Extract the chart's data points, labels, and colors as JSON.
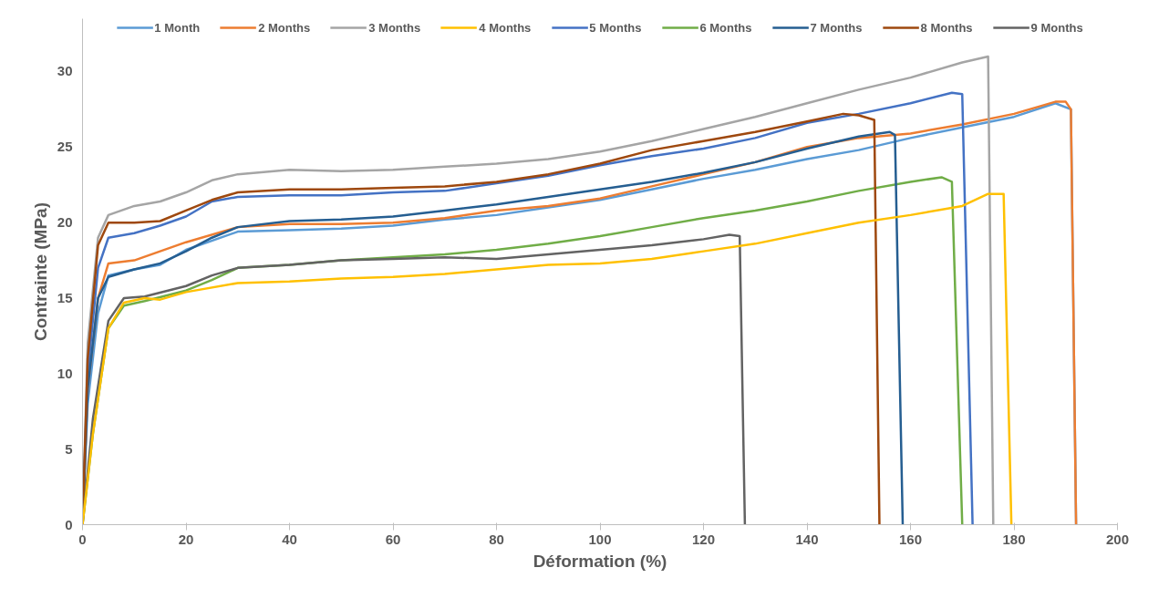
{
  "chart_data": {
    "type": "line",
    "xlabel": "Déformation (%)",
    "ylabel": "Contrainte (MPa)",
    "xlim": [
      0,
      200
    ],
    "ylim": [
      0,
      33.5
    ],
    "xticks": [
      0,
      20,
      40,
      60,
      80,
      100,
      120,
      140,
      160,
      180,
      200
    ],
    "yticks": [
      0,
      5,
      10,
      15,
      20,
      25,
      30
    ],
    "grid": false,
    "legend": "top center",
    "line_style": "solid",
    "marker": "none",
    "series": [
      {
        "name": "1 Month",
        "color": "#5b9bd5",
        "x": [
          0,
          1,
          3,
          5,
          10,
          15,
          20,
          30,
          40,
          50,
          60,
          70,
          80,
          90,
          100,
          110,
          120,
          130,
          140,
          150,
          160,
          170,
          180,
          188,
          191,
          192
        ],
        "values": [
          0,
          8,
          14,
          16.5,
          16.9,
          17.2,
          18.2,
          19.4,
          19.5,
          19.6,
          19.8,
          20.2,
          20.5,
          21,
          21.5,
          22.2,
          22.9,
          23.5,
          24.2,
          24.8,
          25.6,
          26.3,
          27,
          27.9,
          27.5,
          0
        ]
      },
      {
        "name": "2 Months",
        "color": "#ed7d31",
        "x": [
          0,
          1,
          3,
          5,
          10,
          20,
          30,
          40,
          50,
          60,
          70,
          80,
          90,
          100,
          110,
          120,
          130,
          140,
          150,
          160,
          170,
          180,
          188,
          190,
          191,
          192
        ],
        "values": [
          0,
          9,
          15,
          17.3,
          17.5,
          18.7,
          19.7,
          19.9,
          19.9,
          20,
          20.3,
          20.8,
          21.1,
          21.6,
          22.4,
          23.2,
          24,
          25,
          25.6,
          25.9,
          26.5,
          27.2,
          28,
          28,
          27.5,
          0
        ]
      },
      {
        "name": "3 Months",
        "color": "#a5a5a5",
        "x": [
          0,
          1,
          3,
          5,
          10,
          15,
          20,
          25,
          30,
          40,
          50,
          60,
          70,
          80,
          90,
          100,
          110,
          120,
          130,
          140,
          150,
          160,
          170,
          175,
          176
        ],
        "values": [
          0,
          12,
          19,
          20.5,
          21.1,
          21.4,
          22,
          22.8,
          23.2,
          23.5,
          23.4,
          23.5,
          23.7,
          23.9,
          24.2,
          24.7,
          25.4,
          26.2,
          27,
          27.9,
          28.8,
          29.6,
          30.6,
          31,
          0
        ]
      },
      {
        "name": "4 Months",
        "color": "#ffc000",
        "x": [
          0,
          2,
          5,
          8,
          12,
          15,
          20,
          30,
          40,
          50,
          60,
          70,
          80,
          90,
          100,
          110,
          120,
          130,
          140,
          150,
          160,
          170,
          175,
          178,
          179.5
        ],
        "values": [
          0,
          6,
          13,
          14.7,
          15,
          14.9,
          15.4,
          16,
          16.1,
          16.3,
          16.4,
          16.6,
          16.9,
          17.2,
          17.3,
          17.6,
          18.1,
          18.6,
          19.3,
          20,
          20.5,
          21.1,
          21.9,
          21.9,
          0
        ]
      },
      {
        "name": "5 Months",
        "color": "#4472c4",
        "x": [
          0,
          1,
          3,
          5,
          10,
          15,
          20,
          25,
          30,
          40,
          50,
          60,
          70,
          80,
          90,
          100,
          110,
          120,
          130,
          140,
          150,
          160,
          168,
          170,
          172
        ],
        "values": [
          0,
          10,
          17,
          19,
          19.3,
          19.8,
          20.4,
          21.4,
          21.7,
          21.8,
          21.8,
          22,
          22.1,
          22.6,
          23.1,
          23.8,
          24.4,
          24.9,
          25.6,
          26.6,
          27.2,
          27.9,
          28.6,
          28.5,
          0
        ]
      },
      {
        "name": "6 Months",
        "color": "#70ad47",
        "x": [
          0,
          2,
          5,
          8,
          12,
          20,
          25,
          30,
          40,
          50,
          60,
          70,
          80,
          90,
          100,
          110,
          120,
          130,
          140,
          150,
          160,
          166,
          168,
          170
        ],
        "values": [
          0,
          6,
          13,
          14.5,
          14.8,
          15.5,
          16.2,
          17,
          17.2,
          17.5,
          17.7,
          17.9,
          18.2,
          18.6,
          19.1,
          19.7,
          20.3,
          20.8,
          21.4,
          22.1,
          22.7,
          23,
          22.7,
          0
        ]
      },
      {
        "name": "7 Months",
        "color": "#255e91",
        "x": [
          0,
          1,
          3,
          5,
          10,
          15,
          20,
          25,
          30,
          40,
          50,
          60,
          70,
          80,
          90,
          100,
          110,
          120,
          130,
          140,
          150,
          156,
          157,
          158.5
        ],
        "values": [
          0,
          9,
          15,
          16.4,
          16.9,
          17.3,
          18.1,
          19,
          19.7,
          20.1,
          20.2,
          20.4,
          20.8,
          21.2,
          21.7,
          22.2,
          22.7,
          23.3,
          24,
          24.9,
          25.7,
          26,
          25.8,
          0
        ]
      },
      {
        "name": "8 Months",
        "color": "#9e480e",
        "x": [
          0,
          1,
          3,
          5,
          10,
          15,
          20,
          25,
          30,
          40,
          50,
          60,
          70,
          80,
          90,
          100,
          110,
          120,
          130,
          140,
          147,
          150,
          153,
          154
        ],
        "values": [
          0,
          11,
          18.5,
          20,
          20,
          20.1,
          20.8,
          21.5,
          22,
          22.2,
          22.2,
          22.3,
          22.4,
          22.7,
          23.2,
          23.9,
          24.8,
          25.4,
          26,
          26.7,
          27.2,
          27.1,
          26.8,
          0
        ]
      },
      {
        "name": "9 Months",
        "color": "#636363",
        "x": [
          0,
          2,
          5,
          8,
          12,
          20,
          25,
          30,
          40,
          50,
          60,
          70,
          80,
          90,
          100,
          110,
          120,
          125,
          127,
          128
        ],
        "values": [
          0,
          7,
          13.5,
          15,
          15.1,
          15.8,
          16.5,
          17,
          17.2,
          17.5,
          17.6,
          17.7,
          17.6,
          17.9,
          18.2,
          18.5,
          18.9,
          19.2,
          19.1,
          0
        ]
      }
    ]
  }
}
